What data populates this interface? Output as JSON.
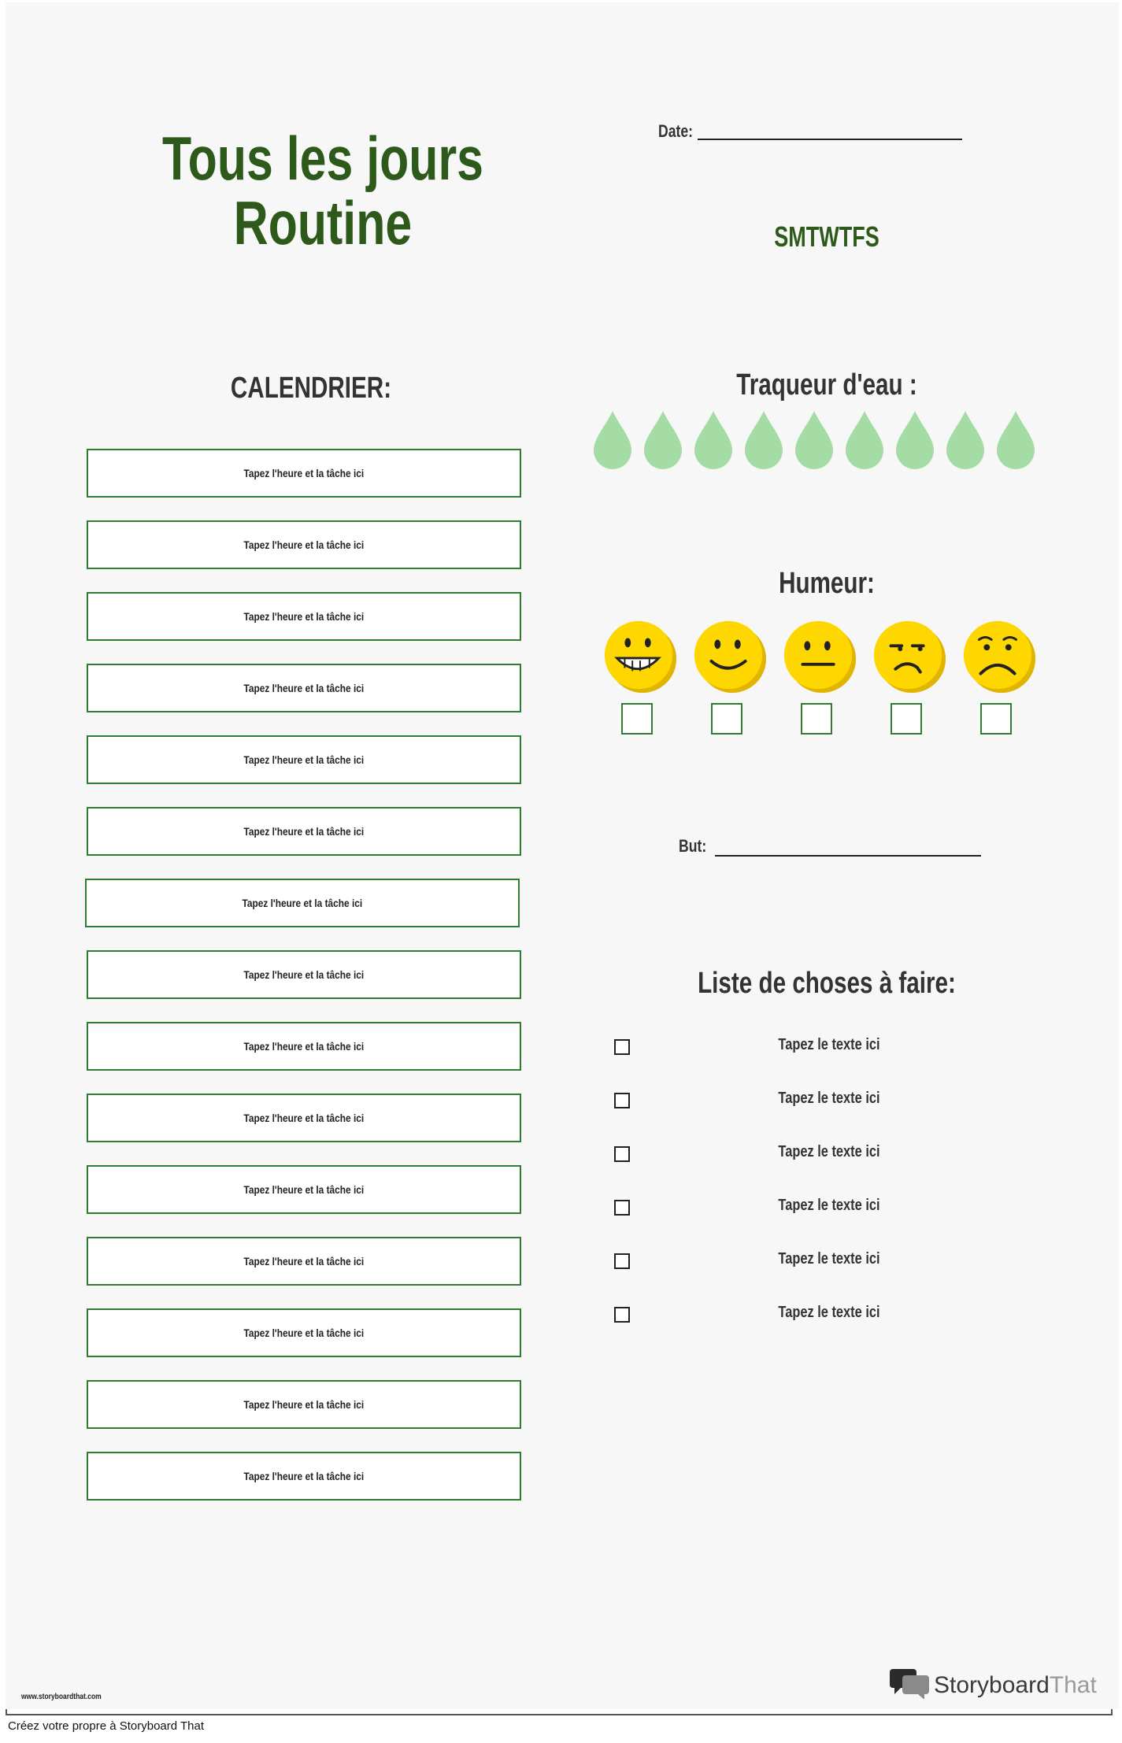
{
  "header": {
    "title_line1": "Tous les jours",
    "title_line2": "Routine",
    "date_label": "Date:",
    "days": "SMTWTFS"
  },
  "calendar": {
    "heading": "CALENDRIER:",
    "slots": [
      "Tapez l'heure et la tâche ici",
      "Tapez l'heure et la tâche ici",
      "Tapez l'heure et la tâche ici",
      "Tapez l'heure et la tâche ici",
      "Tapez l'heure et la tâche ici",
      "Tapez l'heure et la tâche ici",
      "Tapez l'heure et la tâche ici",
      "Tapez l'heure et la tâche ici",
      "Tapez l'heure et la tâche ici",
      "Tapez l'heure et la tâche ici",
      "Tapez l'heure et la tâche ici",
      "Tapez l'heure et la tâche ici",
      "Tapez l'heure et la tâche ici",
      "Tapez l'heure et la tâche ici",
      "Tapez l'heure et la tâche ici"
    ]
  },
  "water": {
    "heading": "Traqueur d'eau :",
    "drop_count": 9,
    "drop_color": "#a5dca5"
  },
  "mood": {
    "heading": "Humeur:",
    "faces": [
      "grinning-face-icon",
      "smiling-face-icon",
      "neutral-face-icon",
      "frowning-face-icon",
      "sad-face-icon"
    ],
    "face_color": "#ffd700"
  },
  "goal": {
    "label": "But:"
  },
  "todo": {
    "heading": "Liste de choses à faire:",
    "items": [
      "Tapez le texte ici",
      "Tapez le texte ici",
      "Tapez le texte ici",
      "Tapez le texte ici",
      "Tapez le texte ici",
      "Tapez le texte ici"
    ]
  },
  "footer": {
    "url": "www.storyboardthat.com",
    "brand_part1": "Storyboard",
    "brand_part2": "That",
    "create_text": "Créez votre propre à Storyboard That"
  },
  "colors": {
    "title_green": "#2d5a1b",
    "box_border": "#2e7d32"
  }
}
